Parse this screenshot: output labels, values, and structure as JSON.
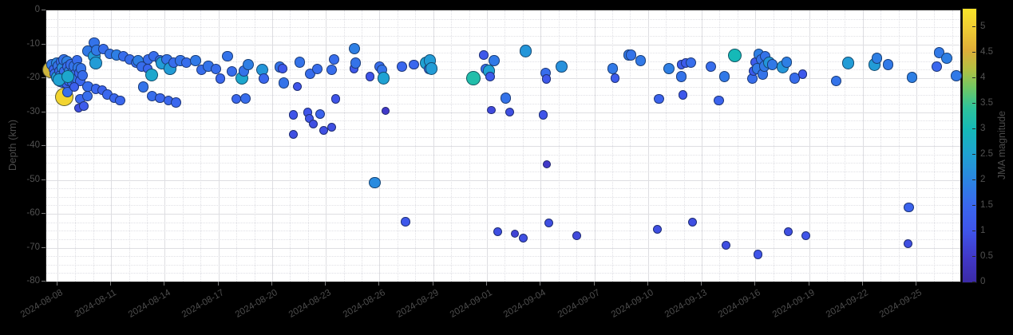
{
  "figure": {
    "background": "#000000",
    "plot_background": "#ffffff",
    "grid_major_color": "#dedee2",
    "grid_minor_color": "#c8c8d0",
    "tick_text_color": "#4d4d4d"
  },
  "y_axis": {
    "label": "Depth (km)",
    "tick_labels": [
      "0",
      "-10",
      "-20",
      "-30",
      "-40",
      "-50",
      "-60",
      "-70",
      "-80"
    ],
    "range": [
      0,
      -80
    ]
  },
  "x_axis": {
    "tick_labels": [
      "2024-08-08",
      "2024-08-11",
      "2024-08-14",
      "2024-08-17",
      "2024-08-20",
      "2024-08-23",
      "2024-08-26",
      "2024-08-29",
      "2024-09-01",
      "2024-09-04",
      "2024-09-07",
      "2024-09-10",
      "2024-09-13",
      "2024-09-16",
      "2024-09-19",
      "2024-09-22",
      "2024-09-25"
    ],
    "tick_interval_days": 3,
    "range_days": [
      -0.62,
      50.45
    ]
  },
  "colorbar": {
    "label": "JMA magnitude",
    "tick_labels": [
      "0",
      "0.5",
      "1",
      "1.5",
      "2",
      "2.5",
      "3",
      "3.5",
      "4",
      "4.5",
      "5"
    ],
    "tick_values": [
      0,
      0.5,
      1,
      1.5,
      2,
      2.5,
      3,
      3.5,
      4,
      4.5,
      5
    ],
    "max": 5.36,
    "stops": [
      [
        0.0,
        "#3b2aa6"
      ],
      [
        0.09,
        "#4138c8"
      ],
      [
        0.19,
        "#3f55ea"
      ],
      [
        0.28,
        "#3a67ee"
      ],
      [
        0.37,
        "#2c84e2"
      ],
      [
        0.47,
        "#1fa3d2"
      ],
      [
        0.56,
        "#15b9b7"
      ],
      [
        0.64,
        "#2fc49a"
      ],
      [
        0.71,
        "#6fc765"
      ],
      [
        0.78,
        "#b4bf42"
      ],
      [
        0.85,
        "#e0ae38"
      ],
      [
        0.93,
        "#f0cd33"
      ],
      [
        1.0,
        "#f7e32a"
      ]
    ]
  },
  "chart_data": {
    "type": "scatter",
    "title": "",
    "xlabel": "",
    "ylabel": "Depth (km)",
    "x_unit": "days since 2024-08-08",
    "color_by": "JMA magnitude",
    "grid": true,
    "ylim": [
      -80,
      0
    ],
    "points_format": [
      "day_offset",
      "depth_km",
      "jma_magnitude"
    ],
    "points": [
      [
        -0.35,
        -17.6,
        4.4
      ],
      [
        -0.31,
        -16.0,
        1.8
      ],
      [
        -0.22,
        -17.4,
        1.5
      ],
      [
        -0.13,
        -18.8,
        1.6
      ],
      [
        -0.04,
        -15.5,
        2.0
      ],
      [
        0.0,
        -19.8,
        2.4
      ],
      [
        0.04,
        -16.5,
        1.7
      ],
      [
        0.09,
        -17.9,
        1.5
      ],
      [
        0.13,
        -21.2,
        1.4
      ],
      [
        0.18,
        -19.3,
        1.8
      ],
      [
        0.22,
        -15.1,
        1.6
      ],
      [
        0.27,
        -16.9,
        2.1
      ],
      [
        0.31,
        -21.4,
        1.5
      ],
      [
        0.36,
        -14.6,
        1.7
      ],
      [
        0.4,
        -25.6,
        5.1
      ],
      [
        0.4,
        -17.9,
        1.6
      ],
      [
        0.45,
        -19.5,
        1.5
      ],
      [
        0.49,
        -21.6,
        1.4
      ],
      [
        0.54,
        -15.1,
        1.9
      ],
      [
        0.55,
        -24.2,
        1.6
      ],
      [
        0.58,
        -16.5,
        1.6
      ],
      [
        0.63,
        -20.9,
        1.5
      ],
      [
        0.67,
        -17.9,
        1.9
      ],
      [
        0.72,
        -19.3,
        1.5
      ],
      [
        0.76,
        -16.0,
        1.6
      ],
      [
        0.81,
        -21.4,
        1.6
      ],
      [
        0.85,
        -18.4,
        1.8
      ],
      [
        0.9,
        -19.8,
        1.5
      ],
      [
        0.94,
        -16.5,
        1.7
      ],
      [
        0.99,
        -20.7,
        1.5
      ],
      [
        1.03,
        -18.8,
        1.6
      ],
      [
        1.08,
        -14.8,
        1.6
      ],
      [
        1.12,
        -20.2,
        1.7
      ],
      [
        1.17,
        -16.9,
        1.8
      ],
      [
        1.21,
        -18.4,
        1.5
      ],
      [
        1.26,
        -20.9,
        1.5
      ],
      [
        0.09,
        -20.4,
        2.5
      ],
      [
        0.58,
        -19.6,
        2.6
      ],
      [
        1.31,
        -17.2,
        1.7
      ],
      [
        1.4,
        -19.1,
        1.6
      ],
      [
        0.94,
        -22.6,
        1.3
      ],
      [
        1.2,
        -28.9,
        0.9
      ],
      [
        1.29,
        -26.1,
        1.5
      ],
      [
        1.47,
        -28.2,
        1.2
      ],
      [
        1.69,
        -25.4,
        1.6
      ],
      [
        1.7,
        -22.4,
        1.6
      ],
      [
        2.14,
        -23.1,
        1.5
      ],
      [
        2.5,
        -23.5,
        1.4
      ],
      [
        2.8,
        -24.9,
        1.5
      ],
      [
        3.17,
        -25.9,
        1.5
      ],
      [
        3.52,
        -26.6,
        1.5
      ],
      [
        1.69,
        -12.0,
        1.8
      ],
      [
        2.05,
        -9.6,
        1.7
      ],
      [
        2.05,
        -13.6,
        2.4
      ],
      [
        2.14,
        -15.5,
        2.4
      ],
      [
        2.18,
        -11.8,
        1.8
      ],
      [
        2.59,
        -11.3,
        1.6
      ],
      [
        2.94,
        -12.9,
        1.7
      ],
      [
        3.3,
        -13.2,
        1.9
      ],
      [
        3.7,
        -13.6,
        1.6
      ],
      [
        4.06,
        -14.4,
        1.6
      ],
      [
        4.41,
        -15.5,
        1.6
      ],
      [
        4.5,
        -14.8,
        1.9
      ],
      [
        4.73,
        -16.5,
        1.6
      ],
      [
        4.81,
        -22.6,
        1.7
      ],
      [
        5.04,
        -17.2,
        1.5
      ],
      [
        5.08,
        -14.4,
        1.6
      ],
      [
        5.26,
        -19.1,
        2.6
      ],
      [
        5.31,
        -25.4,
        1.6
      ],
      [
        5.39,
        -13.6,
        1.6
      ],
      [
        5.75,
        -14.8,
        1.6
      ],
      [
        5.75,
        -25.9,
        1.5
      ],
      [
        5.84,
        -15.5,
        2.4
      ],
      [
        6.11,
        -14.4,
        1.7
      ],
      [
        6.2,
        -26.6,
        1.5
      ],
      [
        6.29,
        -17.2,
        2.4
      ],
      [
        6.51,
        -15.3,
        1.6
      ],
      [
        6.64,
        -27.1,
        1.5
      ],
      [
        6.87,
        -14.8,
        1.7
      ],
      [
        7.22,
        -15.5,
        1.6
      ],
      [
        7.71,
        -14.8,
        1.8
      ],
      [
        8.07,
        -17.6,
        1.6
      ],
      [
        8.43,
        -16.5,
        1.7
      ],
      [
        8.87,
        -17.2,
        1.6
      ],
      [
        9.1,
        -20.2,
        1.5
      ],
      [
        9.5,
        -13.6,
        1.7
      ],
      [
        9.76,
        -17.9,
        1.6
      ],
      [
        9.99,
        -26.1,
        1.5
      ],
      [
        10.52,
        -26.1,
        1.6
      ],
      [
        10.3,
        -20.0,
        2.6
      ],
      [
        10.43,
        -17.9,
        1.7
      ],
      [
        10.66,
        -16.0,
        1.9
      ],
      [
        11.46,
        -17.6,
        2.3
      ],
      [
        11.55,
        -20.2,
        1.5
      ],
      [
        12.44,
        -16.7,
        1.7
      ],
      [
        12.57,
        -17.2,
        1.1
      ],
      [
        12.66,
        -21.4,
        1.7
      ],
      [
        13.2,
        -30.8,
        1.0
      ],
      [
        13.2,
        -36.7,
        0.9
      ],
      [
        13.42,
        -22.4,
        1.0
      ],
      [
        13.55,
        -15.3,
        1.7
      ],
      [
        14.0,
        -30.1,
        1.0
      ],
      [
        14.09,
        -31.8,
        1.0
      ],
      [
        14.13,
        -18.8,
        1.6
      ],
      [
        14.31,
        -33.6,
        0.9
      ],
      [
        14.53,
        -17.2,
        1.6
      ],
      [
        14.67,
        -30.6,
        1.4
      ],
      [
        14.89,
        -35.3,
        0.9
      ],
      [
        15.34,
        -17.6,
        1.6
      ],
      [
        15.34,
        -34.4,
        0.9
      ],
      [
        15.47,
        -14.4,
        1.6
      ],
      [
        15.56,
        -26.1,
        1.0
      ],
      [
        16.58,
        -11.3,
        1.9
      ],
      [
        16.58,
        -17.2,
        1.1
      ],
      [
        16.67,
        -15.5,
        1.7
      ],
      [
        17.48,
        -19.5,
        1.0
      ],
      [
        17.74,
        -50.8,
        2.1
      ],
      [
        18.01,
        -16.5,
        1.6
      ],
      [
        18.15,
        -17.6,
        1.7
      ],
      [
        18.23,
        -20.0,
        2.5
      ],
      [
        18.32,
        -29.6,
        0.5
      ],
      [
        19.26,
        -16.5,
        1.5
      ],
      [
        19.44,
        -62.4,
        1.1
      ],
      [
        19.93,
        -16.0,
        1.5
      ],
      [
        20.6,
        -15.5,
        2.5
      ],
      [
        20.78,
        -17.2,
        1.6
      ],
      [
        20.82,
        -14.8,
        2.4
      ],
      [
        20.91,
        -17.2,
        2.4
      ],
      [
        23.23,
        -20.0,
        3.2
      ],
      [
        23.81,
        -13.2,
        1.1
      ],
      [
        23.94,
        -17.2,
        1.6
      ],
      [
        24.12,
        -17.9,
        2.5
      ],
      [
        24.17,
        -19.5,
        1.2
      ],
      [
        24.25,
        -29.4,
        0.8
      ],
      [
        24.39,
        -14.8,
        1.8
      ],
      [
        24.61,
        -65.2,
        0.9
      ],
      [
        25.06,
        -25.9,
        1.7
      ],
      [
        25.28,
        -30.1,
        0.9
      ],
      [
        25.55,
        -65.9,
        0.7
      ],
      [
        26.04,
        -67.1,
        0.9
      ],
      [
        26.17,
        -12.0,
        2.3
      ],
      [
        27.15,
        -30.8,
        1.0
      ],
      [
        27.28,
        -18.4,
        1.6
      ],
      [
        27.33,
        -20.2,
        1.1
      ],
      [
        27.33,
        -45.4,
        0.5
      ],
      [
        27.46,
        -62.6,
        0.9
      ],
      [
        28.18,
        -16.5,
        2.2
      ],
      [
        29.02,
        -66.4,
        0.8
      ],
      [
        31.03,
        -17.2,
        1.8
      ],
      [
        31.16,
        -20.0,
        1.2
      ],
      [
        31.92,
        -13.2,
        1.8
      ],
      [
        32.05,
        -13.2,
        1.7
      ],
      [
        32.59,
        -14.8,
        1.8
      ],
      [
        33.53,
        -64.7,
        0.9
      ],
      [
        33.62,
        -26.1,
        1.4
      ],
      [
        34.15,
        -17.2,
        1.9
      ],
      [
        34.86,
        -16.0,
        1.2
      ],
      [
        34.86,
        -19.5,
        1.7
      ],
      [
        34.95,
        -24.9,
        1.1
      ],
      [
        35.09,
        -15.5,
        1.2
      ],
      [
        35.4,
        -15.3,
        1.6
      ],
      [
        35.49,
        -62.4,
        0.9
      ],
      [
        36.51,
        -16.7,
        1.6
      ],
      [
        36.96,
        -26.6,
        1.4
      ],
      [
        37.27,
        -19.5,
        1.8
      ],
      [
        37.36,
        -69.2,
        0.9
      ],
      [
        37.85,
        -13.2,
        3.0
      ],
      [
        38.83,
        -20.2,
        1.6
      ],
      [
        38.88,
        -17.9,
        1.2
      ],
      [
        38.97,
        -15.3,
        1.2
      ],
      [
        39.1,
        -17.2,
        1.8
      ],
      [
        39.14,
        -72.0,
        1.0
      ],
      [
        39.19,
        -12.9,
        1.9
      ],
      [
        39.32,
        -14.4,
        1.7
      ],
      [
        39.41,
        -18.8,
        1.7
      ],
      [
        39.5,
        -16.5,
        1.8
      ],
      [
        39.55,
        -13.6,
        1.7
      ],
      [
        39.77,
        -15.5,
        2.3
      ],
      [
        39.95,
        -16.0,
        1.8
      ],
      [
        40.53,
        -16.7,
        2.3
      ],
      [
        40.75,
        -15.3,
        1.9
      ],
      [
        40.84,
        -65.2,
        0.9
      ],
      [
        41.19,
        -20.0,
        1.6
      ],
      [
        41.64,
        -18.8,
        1.1
      ],
      [
        41.82,
        -66.4,
        1.0
      ],
      [
        43.51,
        -20.9,
        1.7
      ],
      [
        44.18,
        -15.5,
        2.4
      ],
      [
        45.65,
        -16.0,
        2.4
      ],
      [
        45.79,
        -14.1,
        1.9
      ],
      [
        46.41,
        -16.0,
        1.8
      ],
      [
        47.53,
        -68.9,
        0.9
      ],
      [
        47.57,
        -58.1,
        1.4
      ],
      [
        47.75,
        -19.8,
        1.9
      ],
      [
        49.13,
        -16.5,
        1.5
      ],
      [
        49.26,
        -12.5,
        1.8
      ],
      [
        49.71,
        -14.1,
        1.9
      ],
      [
        50.24,
        -19.3,
        1.8
      ]
    ]
  }
}
